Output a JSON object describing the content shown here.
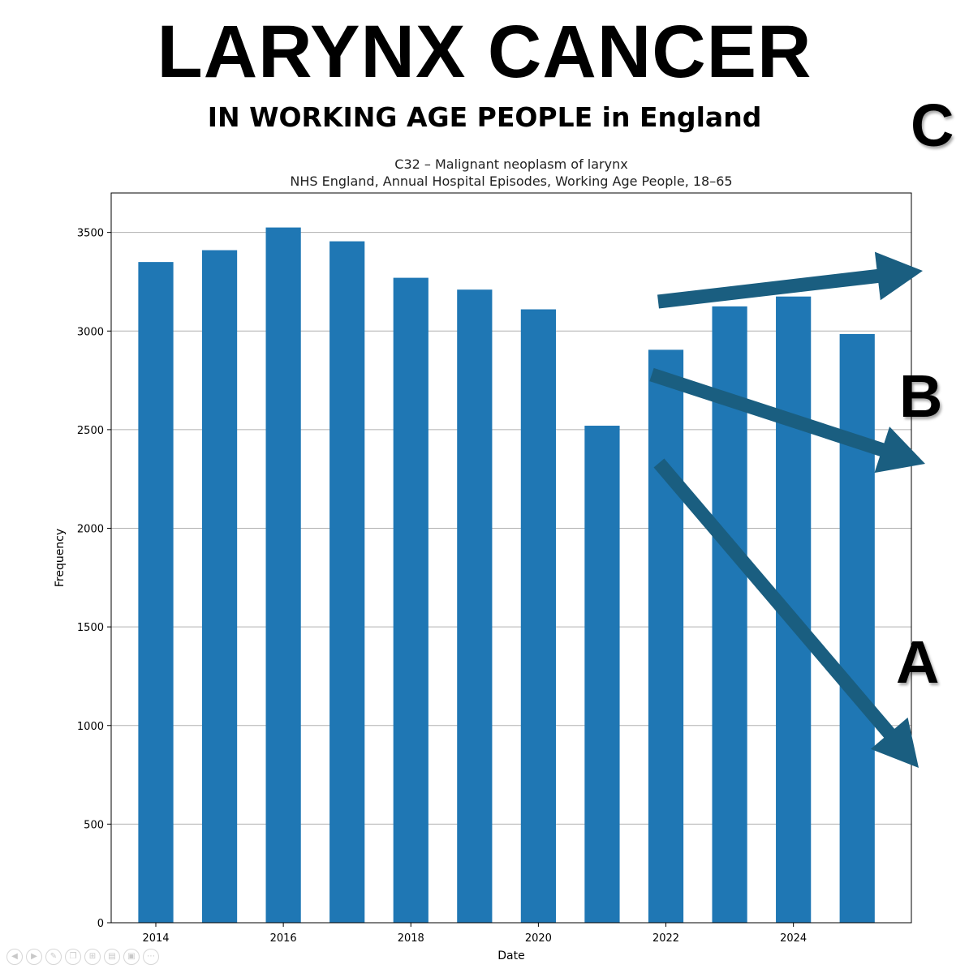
{
  "headline": {
    "title": "LARYNX CANCER",
    "subtitle": "IN WORKING AGE PEOPLE in England"
  },
  "annotations": {
    "arrow_color": "#1a5e80",
    "labels": [
      "C",
      "B",
      "A"
    ]
  },
  "chart_data": {
    "type": "bar",
    "title": "C32 – Malignant neoplasm of larynx",
    "subtitle": "NHS England, Annual Hospital Episodes, Working Age People, 18–65",
    "xlabel": "Date",
    "ylabel": "Frequency",
    "bar_color": "#1f77b4",
    "x": [
      2014,
      2015,
      2016,
      2017,
      2018,
      2019,
      2020,
      2021,
      2022,
      2023,
      2024,
      2025
    ],
    "values": [
      3350,
      3410,
      3525,
      3455,
      3270,
      3210,
      3110,
      2520,
      2905,
      3125,
      3175,
      2985
    ],
    "xlim": [
      2013.3,
      2025.85
    ],
    "ylim": [
      0,
      3700
    ],
    "xticks": [
      2014,
      2016,
      2018,
      2020,
      2022,
      2024
    ],
    "yticks": [
      0,
      500,
      1000,
      1500,
      2000,
      2500,
      3000,
      3500
    ],
    "grid": "horizontal",
    "legend": "none"
  },
  "toolbar": {
    "icons": [
      "prev-icon",
      "next-icon",
      "pen-icon",
      "copy-icon",
      "crop-icon",
      "subtitle-icon",
      "camera-off-icon",
      "more-icon"
    ]
  }
}
